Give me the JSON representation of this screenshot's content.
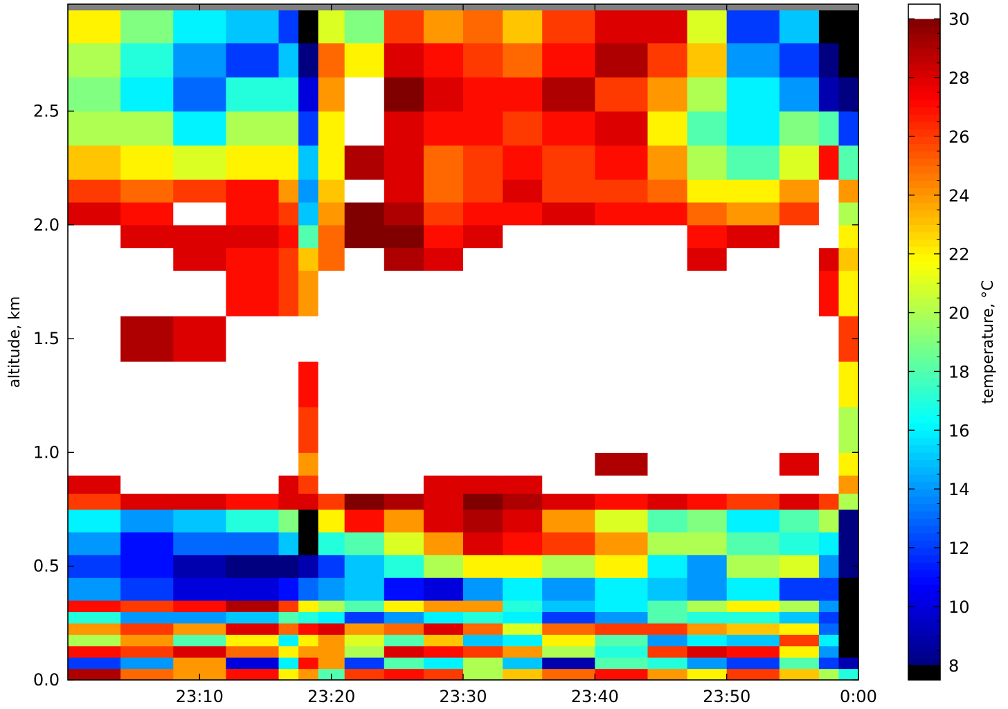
{
  "chart_data": {
    "type": "heatmap",
    "title": "",
    "xlabel": "",
    "ylabel": "altitude, km",
    "colorbar_label": "temperature, °C",
    "x_range_minutes_after_23_00": [
      0,
      60
    ],
    "x_ticks": [
      {
        "label": "23:10",
        "minute": 10
      },
      {
        "label": "23:20",
        "minute": 20
      },
      {
        "label": "23:30",
        "minute": 30
      },
      {
        "label": "23:40",
        "minute": 40
      },
      {
        "label": "23:50",
        "minute": 50
      },
      {
        "label": "0:00",
        "minute": 60
      }
    ],
    "ylim": [
      0,
      2.97
    ],
    "y_ticks": [
      {
        "label": "0.0",
        "value": 0.0
      },
      {
        "label": "0.5",
        "value": 0.5
      },
      {
        "label": "1.0",
        "value": 1.0
      },
      {
        "label": "1.5",
        "value": 1.5
      },
      {
        "label": "2.0",
        "value": 2.0
      },
      {
        "label": "2.5",
        "value": 2.5
      }
    ],
    "colorbar_range": [
      7.5,
      30.5
    ],
    "colorbar_ticks": [
      {
        "label": "8",
        "value": 8
      },
      {
        "label": "10",
        "value": 10
      },
      {
        "label": "12",
        "value": 12
      },
      {
        "label": "14",
        "value": 14
      },
      {
        "label": "16",
        "value": 16
      },
      {
        "label": "18",
        "value": 18
      },
      {
        "label": "20",
        "value": 20
      },
      {
        "label": "22",
        "value": 22
      },
      {
        "label": "24",
        "value": 24
      },
      {
        "label": "26",
        "value": 26
      },
      {
        "label": "28",
        "value": 28
      },
      {
        "label": "30",
        "value": 30
      }
    ],
    "colormap": "jet",
    "under_color": "#000000",
    "over_color": "#ffffff",
    "missing_color": "#808080",
    "time_bins_minutes": [
      0,
      4,
      8,
      12,
      16,
      17.5,
      19,
      21,
      24,
      27,
      30,
      33,
      36,
      40,
      44,
      47,
      50,
      54,
      57,
      58.5,
      60
    ],
    "altitude_bins_km": [
      0,
      0.05,
      0.1,
      0.15,
      0.2,
      0.25,
      0.3,
      0.35,
      0.45,
      0.55,
      0.65,
      0.75,
      0.82,
      0.9,
      1.0,
      1.2,
      1.4,
      1.6,
      1.8,
      1.9,
      2.0,
      2.1,
      2.2,
      2.35,
      2.5,
      2.65,
      2.8,
      2.97
    ],
    "temperature_grid_c": [
      [
        29,
        25,
        24,
        27,
        22,
        24,
        18,
        26,
        27,
        26,
        20,
        23,
        25,
        27,
        24,
        22,
        26,
        23,
        20,
        17
      ],
      [
        12,
        14,
        24,
        10,
        16,
        27,
        24,
        12,
        18,
        16,
        20,
        15,
        9,
        18,
        17,
        14,
        12,
        18,
        12,
        9
      ],
      [
        27,
        26,
        28,
        25,
        22,
        24,
        24,
        20,
        28,
        27,
        26,
        24,
        20,
        17,
        26,
        28,
        27,
        22,
        14,
        7
      ],
      [
        20,
        24,
        18,
        22,
        16,
        22,
        24,
        21,
        18,
        23,
        15,
        16,
        22,
        18,
        14,
        16,
        15,
        26,
        16,
        7
      ],
      [
        24,
        26,
        24,
        28,
        25,
        27,
        28,
        24,
        25,
        28,
        25,
        21,
        25,
        26,
        26,
        24,
        23,
        22,
        13,
        7
      ],
      [
        17,
        14,
        14,
        15,
        18,
        17,
        16,
        12,
        14,
        16,
        17,
        16,
        12,
        14,
        18,
        17,
        17,
        15,
        12,
        7
      ],
      [
        27,
        26,
        27,
        29,
        26,
        22,
        20,
        18,
        22,
        24,
        24,
        17,
        15,
        16,
        18,
        20,
        22,
        20,
        14,
        7
      ],
      [
        14,
        12,
        10,
        10,
        11,
        13,
        14,
        15,
        11,
        10,
        14,
        16,
        14,
        16,
        15,
        14,
        16,
        12,
        12,
        7
      ],
      [
        12,
        11,
        9,
        8,
        8,
        9,
        12,
        15,
        17,
        20,
        22,
        22,
        20,
        22,
        16,
        14,
        20,
        21,
        14,
        8
      ],
      [
        14,
        11,
        13,
        13,
        15,
        7,
        17,
        18,
        21,
        24,
        28,
        27,
        26,
        24,
        20,
        20,
        18,
        17,
        16,
        8
      ],
      [
        16,
        14,
        15,
        17,
        19,
        7,
        22,
        27,
        24,
        28,
        29,
        28,
        24,
        21,
        18,
        19,
        16,
        18,
        20,
        8
      ],
      [
        26,
        28,
        28,
        27,
        28,
        28,
        26,
        30,
        29,
        28,
        30,
        29,
        28,
        27,
        28,
        27,
        26,
        28,
        26,
        20
      ],
      [
        28,
        31,
        31,
        31,
        28,
        26,
        31,
        31,
        31,
        28,
        28,
        28,
        31,
        31,
        31,
        31,
        31,
        31,
        31,
        24
      ],
      [
        31,
        31,
        31,
        31,
        31,
        24,
        31,
        31,
        31,
        31,
        31,
        31,
        31,
        29,
        31,
        31,
        31,
        28,
        31,
        22
      ],
      [
        31,
        31,
        31,
        31,
        31,
        26,
        31,
        31,
        31,
        31,
        31,
        31,
        31,
        31,
        31,
        31,
        31,
        31,
        31,
        20
      ],
      [
        31,
        31,
        31,
        31,
        31,
        27,
        31,
        31,
        31,
        31,
        31,
        31,
        31,
        31,
        31,
        31,
        31,
        31,
        31,
        22
      ],
      [
        31,
        29,
        28,
        31,
        31,
        31,
        31,
        31,
        31,
        31,
        31,
        31,
        31,
        31,
        31,
        31,
        31,
        31,
        31,
        26
      ],
      [
        31,
        31,
        31,
        27,
        26,
        24,
        31,
        31,
        31,
        31,
        31,
        31,
        31,
        31,
        31,
        31,
        31,
        31,
        27,
        22
      ],
      [
        31,
        31,
        28,
        27,
        26,
        23,
        25,
        31,
        29,
        28,
        31,
        31,
        31,
        31,
        31,
        28,
        31,
        31,
        28,
        23
      ],
      [
        31,
        28,
        28,
        28,
        27,
        18,
        25,
        30,
        30,
        27,
        28,
        31,
        31,
        31,
        31,
        27,
        28,
        31,
        31,
        22
      ],
      [
        28,
        27,
        31,
        27,
        26,
        15,
        24,
        30,
        29,
        26,
        27,
        27,
        28,
        27,
        27,
        25,
        24,
        26,
        31,
        20
      ],
      [
        26,
        25,
        26,
        27,
        24,
        14,
        23,
        31,
        28,
        25,
        26,
        28,
        26,
        26,
        25,
        22,
        22,
        24,
        31,
        24
      ],
      [
        23,
        22,
        21,
        22,
        22,
        15,
        22,
        29,
        28,
        25,
        26,
        27,
        26,
        27,
        24,
        20,
        18,
        21,
        27,
        18
      ],
      [
        20,
        20,
        16,
        20,
        20,
        12,
        22,
        31,
        28,
        27,
        27,
        26,
        27,
        28,
        22,
        18,
        16,
        19,
        18,
        12
      ],
      [
        19,
        16,
        13,
        17,
        17,
        10,
        24,
        31,
        30,
        28,
        27,
        27,
        29,
        26,
        24,
        20,
        16,
        14,
        9,
        8
      ],
      [
        20,
        17,
        14,
        12,
        15,
        8,
        25,
        22,
        28,
        27,
        26,
        25,
        27,
        29,
        26,
        23,
        14,
        12,
        8,
        7
      ],
      [
        22,
        19,
        16,
        15,
        12,
        6,
        21,
        19,
        26,
        24,
        25,
        23,
        26,
        28,
        28,
        21,
        12,
        15,
        7,
        7
      ]
    ]
  }
}
